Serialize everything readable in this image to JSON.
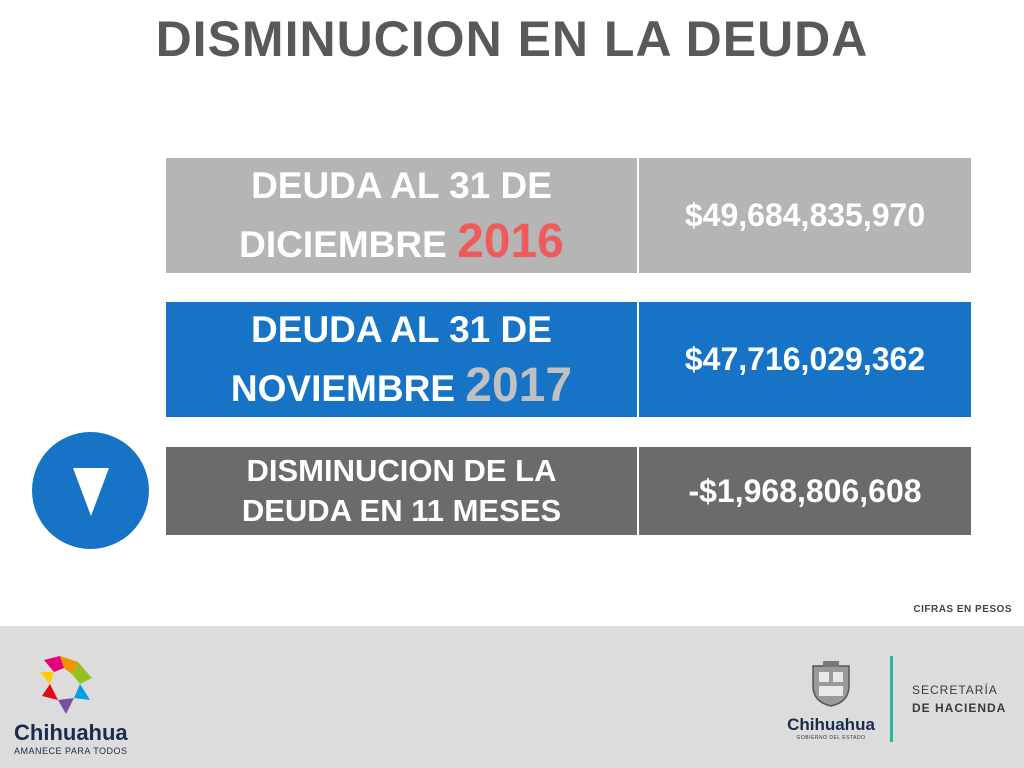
{
  "title": "DISMINUCION EN LA DEUDA",
  "rows": [
    {
      "label_line1": "DEUDA AL 31 DE",
      "label_line2": "DICIEMBRE",
      "year": "2016",
      "value": "$49,684,835,970"
    },
    {
      "label_line1": "DEUDA AL 31 DE",
      "label_line2": "NOVIEMBRE",
      "year": "2017",
      "value": "$47,716,029,362"
    },
    {
      "label_line1": "DISMINUCION DE LA",
      "label_line2": "DEUDA EN 11 MESES",
      "value": "-$1,968,806,608"
    }
  ],
  "indicator_icon": "down-triangle-icon",
  "note": "CIFRAS EN PESOS",
  "footer": {
    "logo_left_name": "Chihuahua",
    "logo_left_slogan": "AMANECE PARA TODOS",
    "seal_name": "Chihuahua",
    "seal_sub": "GOBIERNO DEL ESTADO",
    "secretaria_line1": "SECRETARÍA",
    "secretaria_line2": "DE HACIENDA"
  },
  "colors": {
    "blue": "#1673c6",
    "gray_light": "#b5b5b5",
    "gray_dark": "#6b6b6b",
    "red": "#f05a5a",
    "footer_bg": "#dcdcdc",
    "teal": "#2bb5a4"
  }
}
